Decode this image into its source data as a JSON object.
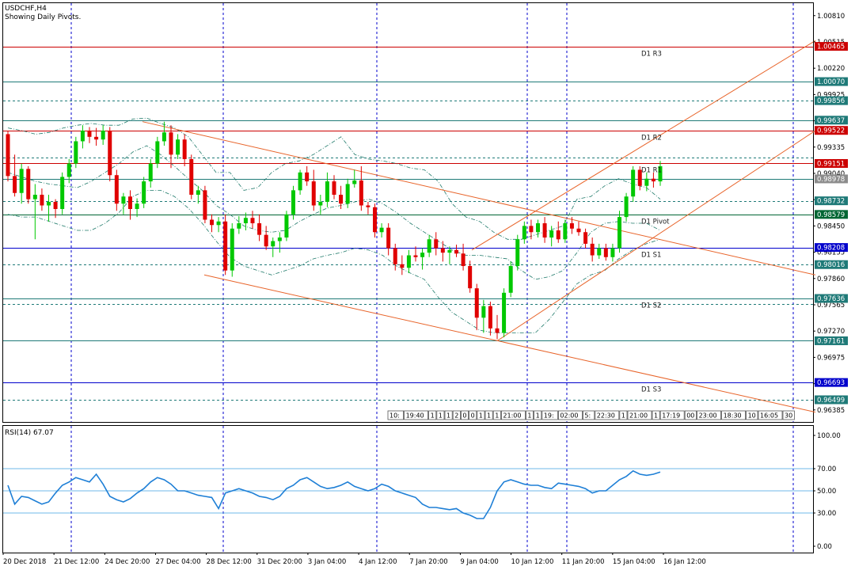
{
  "header": {
    "symbol": "USDCHF,H4",
    "subtitle": "Showing Daily Pivots."
  },
  "rsi_header": "RSI(14) 67.07",
  "colors": {
    "bull": "#00c800",
    "bear": "#e00000",
    "pivot_red": "#cc0000",
    "pivot_green": "#006633",
    "pivot_blue": "#0000cc",
    "level_teal": "#1f7a78",
    "channel": "#e8642a",
    "bands": "#1f7a6a",
    "rsi": "#1e7fd6",
    "vgrid": "#0000cc"
  },
  "chart_data": {
    "type": "candlestick",
    "price_axis": {
      "min": 0.9625,
      "max": 1.0095,
      "labels": [
        "1.00810",
        "1.00515",
        "1.00220",
        "0.99925",
        "0.99630",
        "0.99335",
        "0.99040",
        "0.98745",
        "0.98450",
        "0.98155",
        "0.97860",
        "0.97565",
        "0.97270",
        "0.96975",
        "0.96680",
        "0.96385"
      ]
    },
    "time_labels": [
      "20 Dec 2018",
      "21 Dec 12:00",
      "24 Dec 20:00",
      "27 Dec 04:00",
      "28 Dec 12:00",
      "31 Dec 20:00",
      "3 Jan 04:00",
      "4 Jan 12:00",
      "7 Jan 20:00",
      "9 Jan 04:00",
      "10 Jan 12:00",
      "11 Jan 20:00",
      "15 Jan 04:00",
      "16 Jan 12:00"
    ],
    "price_tags": [
      {
        "value": 1.00465,
        "label": "1.00465",
        "color": "#cc0000"
      },
      {
        "value": 1.0007,
        "label": "1.00070",
        "color": "#1f7a78"
      },
      {
        "value": 0.99856,
        "label": "0.99856",
        "color": "#1f7a78"
      },
      {
        "value": 0.99637,
        "label": "0.99637",
        "color": "#1f7a78"
      },
      {
        "value": 0.99522,
        "label": "0.99522",
        "color": "#cc0000"
      },
      {
        "value": 0.99151,
        "label": "0.99151",
        "color": "#cc0000"
      },
      {
        "value": 0.98978,
        "label": "0.98978",
        "color": "#8c8c8c"
      },
      {
        "value": 0.98732,
        "label": "0.98732",
        "color": "#1f7a78"
      },
      {
        "value": 0.98579,
        "label": "0.98579",
        "color": "#006633"
      },
      {
        "value": 0.98208,
        "label": "0.98208",
        "color": "#0000cc"
      },
      {
        "value": 0.98016,
        "label": "0.98016",
        "color": "#1f7a78"
      },
      {
        "value": 0.97636,
        "label": "0.97636",
        "color": "#1f7a78"
      },
      {
        "value": 0.97161,
        "label": "0.97161",
        "color": "#1f7a78"
      },
      {
        "value": 0.96693,
        "label": "0.96693",
        "color": "#0000cc"
      },
      {
        "value": 0.96499,
        "label": "0.96499",
        "color": "#1f7a78"
      }
    ],
    "pivots": [
      {
        "name": "D1 R3",
        "value": 1.00465,
        "color": "#cc0000",
        "style": "solid"
      },
      {
        "name": "D1 R2",
        "value": 0.99522,
        "color": "#cc0000",
        "style": "solid"
      },
      {
        "name": "D1 R1",
        "value": 0.99151,
        "color": "#cc0000",
        "style": "solid"
      },
      {
        "name": "D1 Pivot",
        "value": 0.98579,
        "color": "#006633",
        "style": "solid"
      },
      {
        "name": "D1 S1",
        "value": 0.98208,
        "color": "#0000cc",
        "style": "solid"
      },
      {
        "name": "D1 S2",
        "value": 0.97636,
        "color": "#1f7a78",
        "style": "solid"
      },
      {
        "name": "D1 S3",
        "value": 0.96693,
        "color": "#0000cc",
        "style": "solid"
      }
    ],
    "extra_levels": [
      {
        "value": 1.0007,
        "color": "#1f7a78",
        "style": "solid"
      },
      {
        "value": 0.99856,
        "color": "#1f7a78",
        "style": "dash"
      },
      {
        "value": 0.99637,
        "color": "#1f7a78",
        "style": "solid"
      },
      {
        "value": 0.99219,
        "color": "#1f7a78",
        "style": "dash"
      },
      {
        "value": 0.98978,
        "color": "#1f7a78",
        "style": "solid"
      },
      {
        "value": 0.98732,
        "color": "#1f7a78",
        "style": "dash"
      },
      {
        "value": 0.98016,
        "color": "#1f7a78",
        "style": "dash"
      },
      {
        "value": 0.97573,
        "color": "#1f7a78",
        "style": "dash"
      },
      {
        "value": 0.97161,
        "color": "#1f7a78",
        "style": "solid"
      },
      {
        "value": 0.96499,
        "color": "#1f7a78",
        "style": "dash"
      }
    ],
    "candles": [
      [
        0.9948,
        0.9952,
        0.9895,
        0.9901
      ],
      [
        0.9901,
        0.9925,
        0.9878,
        0.9882
      ],
      [
        0.9882,
        0.9915,
        0.987,
        0.9909
      ],
      [
        0.9909,
        0.9912,
        0.987,
        0.9875
      ],
      [
        0.9875,
        0.9892,
        0.983,
        0.988
      ],
      [
        0.988,
        0.9887,
        0.9862,
        0.9868
      ],
      [
        0.9868,
        0.988,
        0.985,
        0.9872
      ],
      [
        0.9872,
        0.9875,
        0.9854,
        0.9864
      ],
      [
        0.9864,
        0.9905,
        0.9858,
        0.99
      ],
      [
        0.99,
        0.992,
        0.9893,
        0.9915
      ],
      [
        0.9915,
        0.9945,
        0.991,
        0.994
      ],
      [
        0.994,
        0.9958,
        0.9932,
        0.9952
      ],
      [
        0.9952,
        0.9956,
        0.9938,
        0.9945
      ],
      [
        0.9945,
        0.9955,
        0.9935,
        0.9942
      ],
      [
        0.9942,
        0.9958,
        0.9936,
        0.9952
      ],
      [
        0.9952,
        0.9956,
        0.9895,
        0.9902
      ],
      [
        0.9902,
        0.9908,
        0.9862,
        0.987
      ],
      [
        0.987,
        0.9882,
        0.9858,
        0.9878
      ],
      [
        0.9878,
        0.9885,
        0.9852,
        0.9864
      ],
      [
        0.9864,
        0.9876,
        0.9855,
        0.987
      ],
      [
        0.987,
        0.99,
        0.9865,
        0.9895
      ],
      [
        0.9895,
        0.992,
        0.9888,
        0.9915
      ],
      [
        0.9915,
        0.9945,
        0.991,
        0.994
      ],
      [
        0.994,
        0.9962,
        0.9935,
        0.995
      ],
      [
        0.995,
        0.9958,
        0.991,
        0.9925
      ],
      [
        0.9925,
        0.9948,
        0.992,
        0.9942
      ],
      [
        0.9942,
        0.9948,
        0.9912,
        0.992
      ],
      [
        0.992,
        0.9925,
        0.9875,
        0.988
      ],
      [
        0.988,
        0.989,
        0.987,
        0.9885
      ],
      [
        0.9885,
        0.989,
        0.9848,
        0.9852
      ],
      [
        0.9852,
        0.9858,
        0.9838,
        0.9846
      ],
      [
        0.9846,
        0.9855,
        0.9838,
        0.985
      ],
      [
        0.985,
        0.9858,
        0.979,
        0.9795
      ],
      [
        0.9795,
        0.9848,
        0.9788,
        0.9842
      ],
      [
        0.9842,
        0.9856,
        0.9836,
        0.9848
      ],
      [
        0.9848,
        0.986,
        0.984,
        0.9854
      ],
      [
        0.9854,
        0.9862,
        0.9842,
        0.9848
      ],
      [
        0.9848,
        0.9858,
        0.9828,
        0.9835
      ],
      [
        0.9835,
        0.9845,
        0.9818,
        0.9822
      ],
      [
        0.9822,
        0.9832,
        0.981,
        0.9828
      ],
      [
        0.9828,
        0.9838,
        0.9815,
        0.9832
      ],
      [
        0.9832,
        0.9862,
        0.9828,
        0.9858
      ],
      [
        0.9858,
        0.989,
        0.9852,
        0.9885
      ],
      [
        0.9885,
        0.9908,
        0.988,
        0.9905
      ],
      [
        0.9905,
        0.9912,
        0.989,
        0.9895
      ],
      [
        0.9895,
        0.9908,
        0.9862,
        0.9868
      ],
      [
        0.9868,
        0.988,
        0.9858,
        0.9872
      ],
      [
        0.9872,
        0.9905,
        0.9866,
        0.9895
      ],
      [
        0.9895,
        0.9902,
        0.9875,
        0.988
      ],
      [
        0.988,
        0.989,
        0.9864,
        0.987
      ],
      [
        0.987,
        0.9898,
        0.9865,
        0.9892
      ],
      [
        0.9892,
        0.9908,
        0.9888,
        0.9896
      ],
      [
        0.9896,
        0.9912,
        0.9862,
        0.9868
      ],
      [
        0.9868,
        0.9872,
        0.9858,
        0.9866
      ],
      [
        0.9866,
        0.987,
        0.9832,
        0.9838
      ],
      [
        0.9838,
        0.9848,
        0.9832,
        0.9843
      ],
      [
        0.9843,
        0.9848,
        0.9812,
        0.982
      ],
      [
        0.982,
        0.9825,
        0.9795,
        0.9802
      ],
      [
        0.9802,
        0.9812,
        0.979,
        0.9798
      ],
      [
        0.9798,
        0.9818,
        0.9792,
        0.9812
      ],
      [
        0.9812,
        0.9822,
        0.9805,
        0.981
      ],
      [
        0.981,
        0.982,
        0.9796,
        0.9815
      ],
      [
        0.9815,
        0.9835,
        0.981,
        0.983
      ],
      [
        0.983,
        0.9838,
        0.9812,
        0.982
      ],
      [
        0.982,
        0.9828,
        0.9805,
        0.9815
      ],
      [
        0.9815,
        0.9822,
        0.9802,
        0.9818
      ],
      [
        0.9818,
        0.9824,
        0.981,
        0.9814
      ],
      [
        0.9814,
        0.9825,
        0.9795,
        0.98
      ],
      [
        0.98,
        0.9806,
        0.977,
        0.9775
      ],
      [
        0.9775,
        0.978,
        0.9728,
        0.9742
      ],
      [
        0.9742,
        0.9762,
        0.9725,
        0.9755
      ],
      [
        0.9755,
        0.976,
        0.9722,
        0.973
      ],
      [
        0.973,
        0.9745,
        0.9718,
        0.9725
      ],
      [
        0.9725,
        0.9775,
        0.972,
        0.977
      ],
      [
        0.977,
        0.9805,
        0.9765,
        0.98
      ],
      [
        0.98,
        0.9835,
        0.9795,
        0.983
      ],
      [
        0.983,
        0.985,
        0.9825,
        0.9845
      ],
      [
        0.9845,
        0.9852,
        0.983,
        0.9838
      ],
      [
        0.9838,
        0.9852,
        0.9832,
        0.9848
      ],
      [
        0.9848,
        0.9855,
        0.9826,
        0.9832
      ],
      [
        0.9832,
        0.9845,
        0.9822,
        0.984
      ],
      [
        0.984,
        0.985,
        0.9826,
        0.983
      ],
      [
        0.983,
        0.9852,
        0.9826,
        0.9848
      ],
      [
        0.9848,
        0.9855,
        0.9836,
        0.9842
      ],
      [
        0.9842,
        0.985,
        0.9834,
        0.9838
      ],
      [
        0.9838,
        0.9842,
        0.982,
        0.9825
      ],
      [
        0.9825,
        0.9832,
        0.9805,
        0.9812
      ],
      [
        0.9812,
        0.9825,
        0.9808,
        0.982
      ],
      [
        0.982,
        0.9825,
        0.9806,
        0.981
      ],
      [
        0.981,
        0.9825,
        0.9805,
        0.982
      ],
      [
        0.982,
        0.9862,
        0.9815,
        0.9855
      ],
      [
        0.9855,
        0.9882,
        0.985,
        0.9878
      ],
      [
        0.9878,
        0.9912,
        0.9872,
        0.9908
      ],
      [
        0.9908,
        0.9912,
        0.9885,
        0.989
      ],
      [
        0.989,
        0.9905,
        0.9884,
        0.9898
      ],
      [
        0.9898,
        0.9905,
        0.9888,
        0.9895
      ],
      [
        0.9895,
        0.9918,
        0.989,
        0.9912
      ]
    ],
    "bollinger": {
      "upper": [
        0.9955,
        0.9952,
        0.9948,
        0.995,
        0.9955,
        0.9958,
        0.996,
        0.9958,
        0.9958,
        0.9965,
        0.9966,
        0.996,
        0.9955,
        0.9945,
        0.9925,
        0.9905,
        0.9905,
        0.9885,
        0.9888,
        0.9905,
        0.9915,
        0.9918,
        0.9925,
        0.9935,
        0.9945,
        0.9925,
        0.992,
        0.9918,
        0.9915,
        0.991,
        0.9908,
        0.9895,
        0.987,
        0.9855,
        0.985,
        0.9838,
        0.983,
        0.983,
        0.9835,
        0.984,
        0.9845,
        0.9875,
        0.9878,
        0.989,
        0.9898,
        0.9892,
        0.9888,
        0.9875
      ],
      "middle": [
        0.9905,
        0.99,
        0.9895,
        0.9892,
        0.989,
        0.9888,
        0.9895,
        0.9905,
        0.9915,
        0.9928,
        0.9935,
        0.9925,
        0.9912,
        0.9898,
        0.9885,
        0.9868,
        0.9858,
        0.9845,
        0.984,
        0.9838,
        0.984,
        0.985,
        0.9858,
        0.9865,
        0.9868,
        0.9872,
        0.9875,
        0.987,
        0.986,
        0.9848,
        0.9838,
        0.9828,
        0.9818,
        0.9812,
        0.9812,
        0.981,
        0.9808,
        0.9795,
        0.9785,
        0.9788,
        0.9795,
        0.9815,
        0.9838,
        0.9848,
        0.985,
        0.9848,
        0.9848,
        0.984
      ],
      "lower": [
        0.9858,
        0.9855,
        0.9855,
        0.985,
        0.9845,
        0.984,
        0.984,
        0.9848,
        0.986,
        0.9878,
        0.9885,
        0.9885,
        0.9878,
        0.9865,
        0.9848,
        0.9828,
        0.981,
        0.98,
        0.9795,
        0.979,
        0.9795,
        0.98,
        0.9808,
        0.9812,
        0.9815,
        0.982,
        0.9818,
        0.9812,
        0.98,
        0.9792,
        0.9785,
        0.9765,
        0.9748,
        0.9738,
        0.9728,
        0.9725,
        0.9725,
        0.9725,
        0.9725,
        0.974,
        0.976,
        0.978,
        0.979,
        0.9795,
        0.9808,
        0.9818,
        0.9825,
        0.983
      ]
    },
    "rsi": {
      "min": 0,
      "max": 100,
      "ticks": [
        "100.00",
        "70.00",
        "50.00",
        "30.00",
        "0.00"
      ],
      "levels": [
        70,
        50,
        30
      ],
      "values": [
        55,
        38,
        45,
        44,
        41,
        38,
        40,
        48,
        55,
        58,
        62,
        60,
        58,
        65,
        56,
        45,
        42,
        40,
        43,
        48,
        52,
        58,
        62,
        60,
        56,
        50,
        50,
        48,
        46,
        45,
        44,
        34,
        48,
        50,
        52,
        50,
        48,
        45,
        44,
        42,
        45,
        52,
        55,
        60,
        62,
        58,
        54,
        52,
        53,
        55,
        58,
        54,
        52,
        50,
        52,
        56,
        54,
        50,
        48,
        46,
        44,
        38,
        35,
        35,
        34,
        33,
        34,
        30,
        28,
        25,
        25,
        35,
        50,
        58,
        60,
        58,
        56,
        55,
        55,
        53,
        52,
        57,
        56,
        55,
        54,
        52,
        48,
        50,
        50,
        55,
        60,
        63,
        68,
        65,
        64,
        65,
        67
      ]
    },
    "channel_lines": [
      {
        "name": "upper-channel-line",
        "from": [
          180,
          0.9962
        ],
        "to": [
          1030,
          0.979
        ]
      },
      {
        "name": "lower-channel-line",
        "from": [
          258,
          0.979
        ],
        "to": [
          1030,
          0.9636
        ]
      },
      {
        "name": "rising-channel-upper",
        "from": [
          596,
          0.9818
        ],
        "to": [
          1030,
          1.0053
        ]
      },
      {
        "name": "rising-channel-lower",
        "from": [
          628,
          0.9716
        ],
        "to": [
          1030,
          0.9952
        ]
      }
    ],
    "session_labels": [
      "10:",
      "19:40",
      "1",
      "1",
      "1",
      "2",
      "0",
      "0",
      "1",
      "1",
      "1",
      "21:00",
      "1",
      "1",
      "19:",
      "02:00",
      "5:",
      "22:30",
      "1",
      "21:00",
      "1",
      "17:19",
      "00",
      "23:00",
      "18:30",
      "10",
      "16:05",
      "30"
    ]
  }
}
